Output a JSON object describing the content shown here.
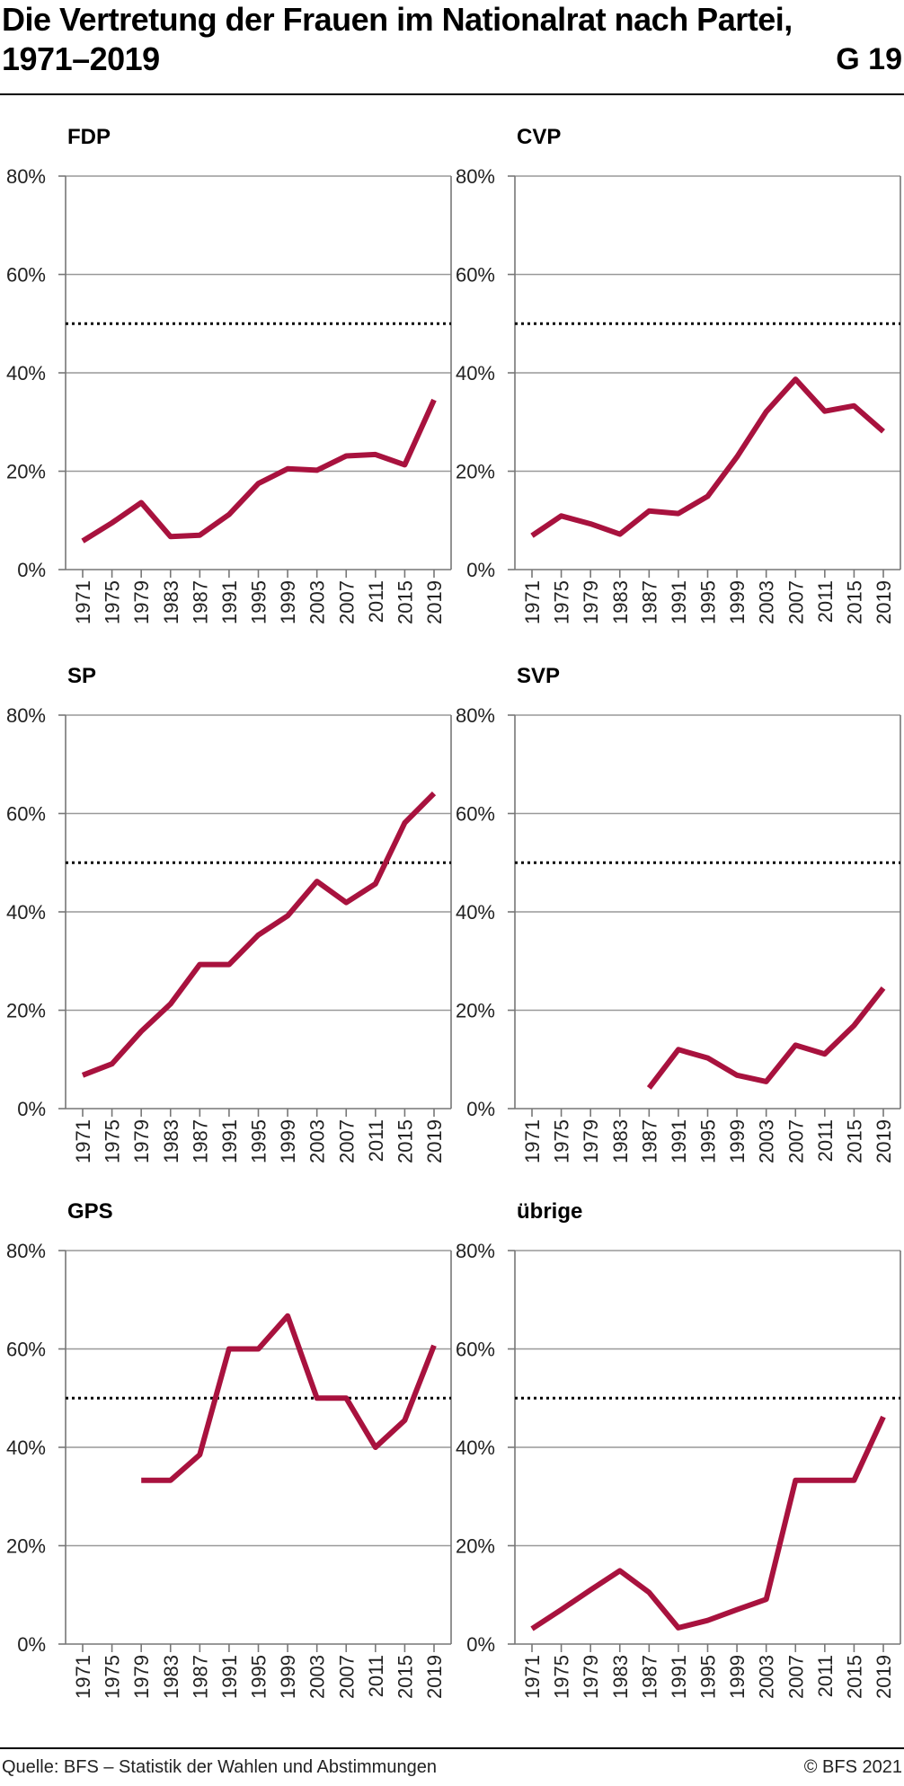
{
  "header": {
    "title": "Die Vertretung der Frauen im Nationalrat nach Partei, 1971–2019",
    "figure_id": "G 19"
  },
  "footer": {
    "source": "Quelle: BFS – Statistik der Wahlen und Abstimmungen",
    "copyright": "© BFS 2021"
  },
  "colors": {
    "series": "#a8123e",
    "grid": "#999999",
    "axis": "#777777",
    "reference": "#000000"
  },
  "chart_data": [
    {
      "type": "line",
      "title": "FDP",
      "x": [
        "1971",
        "1975",
        "1979",
        "1983",
        "1987",
        "1991",
        "1995",
        "1999",
        "2003",
        "2007",
        "2011",
        "2015",
        "2019"
      ],
      "y_ticks": [
        "0%",
        "20%",
        "40%",
        "60%",
        "80%"
      ],
      "ylim": [
        0,
        80
      ],
      "reference_line": 50,
      "grid": true,
      "series": [
        {
          "values": [
            5.8,
            9.5,
            13.6,
            6.7,
            7.0,
            11.2,
            17.5,
            20.5,
            20.2,
            23.1,
            23.4,
            21.3,
            34.5
          ]
        }
      ]
    },
    {
      "type": "line",
      "title": "CVP",
      "x": [
        "1971",
        "1975",
        "1979",
        "1983",
        "1987",
        "1991",
        "1995",
        "1999",
        "2003",
        "2007",
        "2011",
        "2015",
        "2019"
      ],
      "y_ticks": [
        "0%",
        "20%",
        "40%",
        "60%",
        "80%"
      ],
      "ylim": [
        0,
        80
      ],
      "reference_line": 50,
      "grid": true,
      "series": [
        {
          "values": [
            6.9,
            10.9,
            9.3,
            7.2,
            11.9,
            11.4,
            14.9,
            22.9,
            32.1,
            38.7,
            32.2,
            33.3,
            28.1
          ]
        }
      ]
    },
    {
      "type": "line",
      "title": "SP",
      "x": [
        "1971",
        "1975",
        "1979",
        "1983",
        "1987",
        "1991",
        "1995",
        "1999",
        "2003",
        "2007",
        "2011",
        "2015",
        "2019"
      ],
      "y_ticks": [
        "0%",
        "20%",
        "40%",
        "60%",
        "80%"
      ],
      "ylim": [
        0,
        80
      ],
      "reference_line": 50,
      "grid": true,
      "series": [
        {
          "values": [
            6.8,
            9.1,
            15.7,
            21.3,
            29.3,
            29.3,
            35.3,
            39.2,
            46.2,
            41.9,
            45.7,
            58.1,
            64.1
          ]
        }
      ]
    },
    {
      "type": "line",
      "title": "SVP",
      "x": [
        "1971",
        "1975",
        "1979",
        "1983",
        "1987",
        "1991",
        "1995",
        "1999",
        "2003",
        "2007",
        "2011",
        "2015",
        "2019"
      ],
      "y_ticks": [
        "0%",
        "20%",
        "40%",
        "60%",
        "80%"
      ],
      "ylim": [
        0,
        80
      ],
      "reference_line": 50,
      "grid": true,
      "series": [
        {
          "values": [
            null,
            null,
            null,
            null,
            4.2,
            12.0,
            10.3,
            6.8,
            5.5,
            12.9,
            11.1,
            16.9,
            24.5
          ]
        }
      ]
    },
    {
      "type": "line",
      "title": "GPS",
      "x": [
        "1971",
        "1975",
        "1979",
        "1983",
        "1987",
        "1991",
        "1995",
        "1999",
        "2003",
        "2007",
        "2011",
        "2015",
        "2019"
      ],
      "y_ticks": [
        "0%",
        "20%",
        "40%",
        "60%",
        "80%"
      ],
      "ylim": [
        0,
        80
      ],
      "reference_line": 50,
      "grid": true,
      "series": [
        {
          "values": [
            null,
            null,
            33.3,
            33.3,
            38.5,
            60.0,
            60.0,
            66.7,
            50.0,
            50.0,
            40.0,
            45.5,
            60.7
          ]
        }
      ]
    },
    {
      "type": "line",
      "title": "übrige",
      "x": [
        "1971",
        "1975",
        "1979",
        "1983",
        "1987",
        "1991",
        "1995",
        "1999",
        "2003",
        "2007",
        "2011",
        "2015",
        "2019"
      ],
      "y_ticks": [
        "0%",
        "20%",
        "40%",
        "60%",
        "80%"
      ],
      "ylim": [
        0,
        80
      ],
      "reference_line": 50,
      "grid": true,
      "series": [
        {
          "values": [
            3.1,
            7.0,
            11.0,
            14.9,
            10.5,
            3.3,
            4.8,
            7.0,
            9.1,
            33.3,
            33.3,
            33.3,
            46.2
          ]
        }
      ]
    }
  ]
}
